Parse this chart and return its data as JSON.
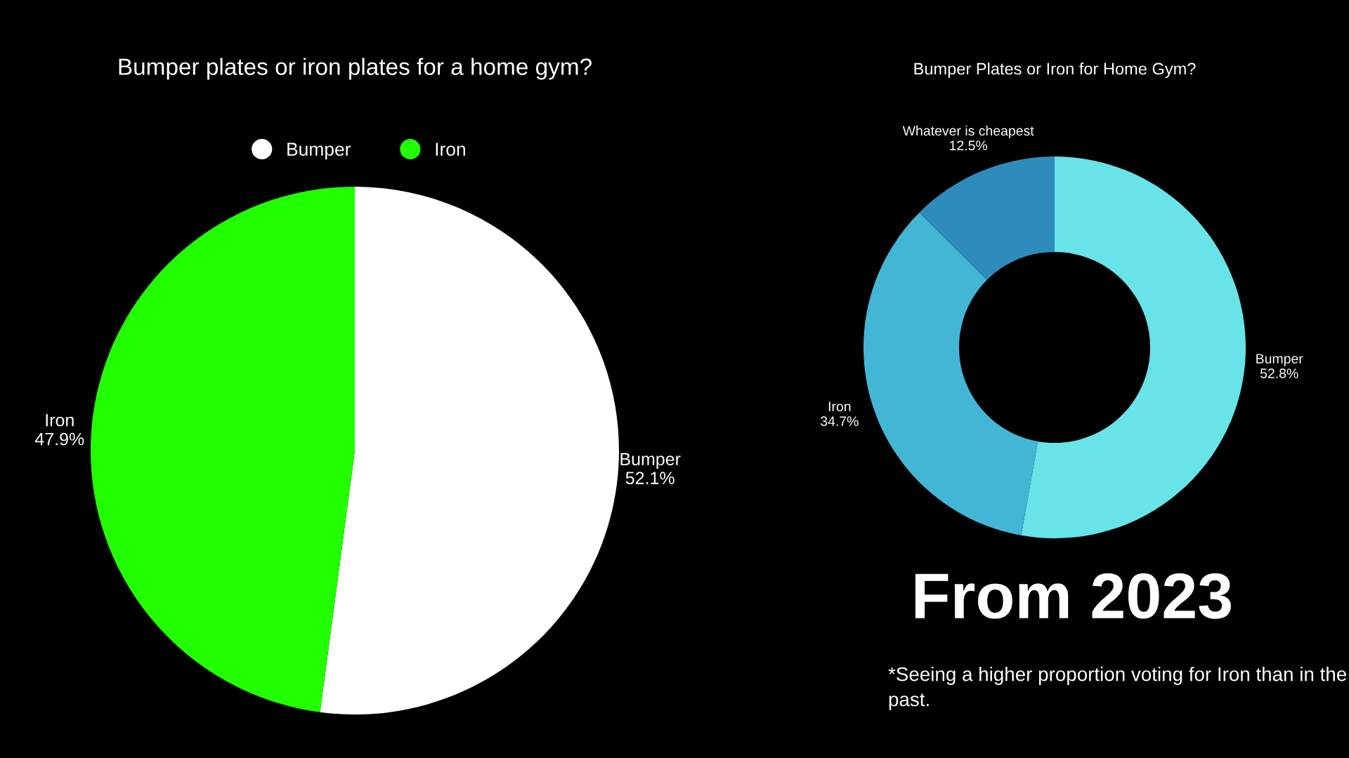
{
  "chart_data": [
    {
      "type": "pie",
      "title": "Bumper plates or iron plates for a home gym?",
      "categories": [
        "Bumper",
        "Iron"
      ],
      "values": [
        52.1,
        47.9
      ],
      "colors": [
        "#ffffff",
        "#22ff00"
      ],
      "value_labels": [
        "52.1%",
        "47.9%"
      ],
      "legend": "top"
    },
    {
      "type": "donut",
      "title": "Bumper Plates or Iron for Home Gym?",
      "categories": [
        "Bumper",
        "Iron",
        "Whatever is cheapest"
      ],
      "values": [
        52.8,
        34.7,
        12.5
      ],
      "colors": [
        "#68e3e8",
        "#43b6d6",
        "#2e8cbc"
      ],
      "value_labels": [
        "52.8%",
        "34.7%",
        "12.5%"
      ],
      "legend": false,
      "annotations": [
        "From 2023",
        "*Seeing a higher proportion voting for Iron than in the past."
      ]
    }
  ]
}
